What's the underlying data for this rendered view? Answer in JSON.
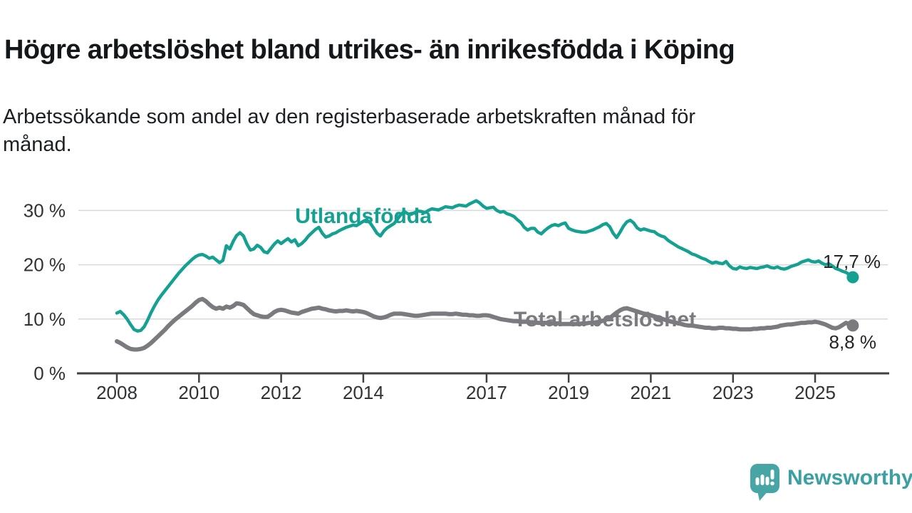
{
  "title": "Högre arbetslöshet bland utrikes- än inrikesfödda i Köping",
  "subtitle": "Arbetssökande som andel av den registerbaserade arbetskraften månad för månad.",
  "branding": {
    "name": "Newsworthy",
    "color": "#3aa0a2"
  },
  "chart_data": {
    "type": "line",
    "title": "Högre arbetslöshet bland utrikes- än inrikesfödda i Köping",
    "subtitle": "Arbetssökande som andel av den registerbaserade arbetskraften månad för månad.",
    "x_start": 2008.0,
    "x_step_months": 1,
    "xlabel": "",
    "ylabel": "",
    "ylim": [
      0,
      33
    ],
    "grid": "horizontal",
    "x_axis": {
      "ticks": [
        2008,
        2010,
        2012,
        2014,
        2017,
        2019,
        2021,
        2023,
        2025
      ],
      "labels": [
        "2008",
        "2010",
        "2012",
        "2014",
        "2017",
        "2019",
        "2021",
        "2023",
        "2025"
      ]
    },
    "y_axis": {
      "ticks": [
        0,
        10,
        20,
        30
      ],
      "labels": [
        "0 %",
        "10 %",
        "20 %",
        "30 %"
      ]
    },
    "series": [
      {
        "name": "Utlandsfödda",
        "color": "#14a191",
        "end_label": "17,7 %",
        "last_value": 17.7,
        "values": [
          11.1,
          11.4,
          10.8,
          10.0,
          9.0,
          8.1,
          7.8,
          7.9,
          8.6,
          9.8,
          11.2,
          12.4,
          13.5,
          14.4,
          15.2,
          16.0,
          16.8,
          17.6,
          18.4,
          19.1,
          19.8,
          20.4,
          21.0,
          21.5,
          21.8,
          21.9,
          21.6,
          21.2,
          21.4,
          20.9,
          20.4,
          20.8,
          23.5,
          22.9,
          24.3,
          25.4,
          25.9,
          25.3,
          23.8,
          22.7,
          22.9,
          23.6,
          23.2,
          22.4,
          22.2,
          23.0,
          23.8,
          24.4,
          23.9,
          24.4,
          24.8,
          24.2,
          24.6,
          23.5,
          23.9,
          24.5,
          25.3,
          25.9,
          26.5,
          26.9,
          25.8,
          25.1,
          25.3,
          25.7,
          25.9,
          26.3,
          26.6,
          26.9,
          27.1,
          27.3,
          27.2,
          27.6,
          28.0,
          28.3,
          27.7,
          26.8,
          25.8,
          25.3,
          26.2,
          26.8,
          27.2,
          27.6,
          28.4,
          29.3,
          29.8,
          29.4,
          29.3,
          29.6,
          29.9,
          29.8,
          29.6,
          30.0,
          30.3,
          30.2,
          30.1,
          30.4,
          30.7,
          30.6,
          30.5,
          30.8,
          31.0,
          30.9,
          30.8,
          31.2,
          31.5,
          31.8,
          31.4,
          30.8,
          30.4,
          30.5,
          30.6,
          30.0,
          29.7,
          29.8,
          29.4,
          29.2,
          28.9,
          28.3,
          27.8,
          26.9,
          26.4,
          26.7,
          26.7,
          26.0,
          25.7,
          26.3,
          26.8,
          27.2,
          27.4,
          27.2,
          27.5,
          27.7,
          26.7,
          26.4,
          26.2,
          26.1,
          26.0,
          26.0,
          26.2,
          26.4,
          26.7,
          27.0,
          27.4,
          27.6,
          27.0,
          25.8,
          25.0,
          26.0,
          27.1,
          27.9,
          28.2,
          27.7,
          26.8,
          26.4,
          26.6,
          26.4,
          26.2,
          26.1,
          25.6,
          25.3,
          25.1,
          24.5,
          24.1,
          23.7,
          23.3,
          23.0,
          22.7,
          22.4,
          22.0,
          21.8,
          21.5,
          21.2,
          21.0,
          20.6,
          20.3,
          20.5,
          20.3,
          20.2,
          20.6,
          19.8,
          19.3,
          19.2,
          19.6,
          19.4,
          19.3,
          19.5,
          19.4,
          19.3,
          19.5,
          19.6,
          19.8,
          19.5,
          19.4,
          19.6,
          19.3,
          19.2,
          19.4,
          19.7,
          19.9,
          20.1,
          20.5,
          20.7,
          20.9,
          20.6,
          20.5,
          20.7,
          20.3,
          20.0,
          20.2,
          19.8,
          19.3,
          19.1,
          18.8,
          18.6,
          18.2,
          17.7
        ]
      },
      {
        "name": "Total arbetslöshet",
        "color": "#7b7a7f",
        "end_label": "8,8 %",
        "last_value": 8.8,
        "values": [
          5.9,
          5.6,
          5.2,
          4.8,
          4.5,
          4.4,
          4.4,
          4.5,
          4.7,
          5.1,
          5.6,
          6.2,
          6.8,
          7.4,
          8.0,
          8.7,
          9.3,
          9.9,
          10.4,
          10.9,
          11.4,
          11.9,
          12.4,
          13.0,
          13.5,
          13.7,
          13.3,
          12.7,
          12.2,
          11.9,
          12.1,
          11.9,
          12.3,
          12.1,
          12.4,
          12.9,
          12.8,
          12.6,
          12.0,
          11.4,
          10.9,
          10.7,
          10.5,
          10.4,
          10.4,
          10.8,
          11.3,
          11.6,
          11.7,
          11.6,
          11.4,
          11.2,
          11.1,
          11.0,
          11.3,
          11.5,
          11.7,
          11.9,
          12.0,
          12.1,
          11.9,
          11.8,
          11.6,
          11.5,
          11.4,
          11.5,
          11.5,
          11.6,
          11.5,
          11.4,
          11.5,
          11.4,
          11.3,
          11.1,
          10.8,
          10.5,
          10.3,
          10.2,
          10.3,
          10.5,
          10.8,
          11.0,
          11.0,
          11.0,
          10.9,
          10.8,
          10.7,
          10.6,
          10.6,
          10.7,
          10.8,
          10.9,
          11.0,
          11.0,
          11.0,
          11.0,
          11.0,
          10.9,
          10.9,
          11.0,
          10.9,
          10.8,
          10.8,
          10.7,
          10.7,
          10.6,
          10.6,
          10.7,
          10.7,
          10.6,
          10.4,
          10.2,
          10.0,
          9.9,
          9.8,
          9.7,
          9.6,
          9.6,
          9.5,
          9.5,
          9.5,
          9.4,
          9.4,
          9.3,
          9.3,
          9.3,
          9.3,
          9.2,
          9.2,
          9.2,
          9.1,
          9.1,
          9.1,
          9.1,
          9.1,
          9.1,
          9.2,
          9.2,
          9.3,
          9.3,
          9.4,
          9.5,
          9.7,
          9.9,
          10.2,
          10.7,
          11.2,
          11.6,
          11.9,
          12.0,
          11.8,
          11.6,
          11.4,
          11.2,
          11.0,
          10.9,
          10.7,
          10.5,
          10.3,
          10.1,
          9.9,
          9.7,
          9.5,
          9.4,
          9.2,
          9.1,
          8.9,
          8.8,
          8.8,
          8.7,
          8.6,
          8.5,
          8.4,
          8.4,
          8.3,
          8.3,
          8.4,
          8.4,
          8.3,
          8.3,
          8.2,
          8.2,
          8.1,
          8.1,
          8.1,
          8.1,
          8.2,
          8.2,
          8.3,
          8.3,
          8.4,
          8.4,
          8.5,
          8.6,
          8.8,
          8.9,
          9.0,
          9.0,
          9.1,
          9.2,
          9.3,
          9.3,
          9.4,
          9.4,
          9.5,
          9.4,
          9.2,
          9.0,
          8.7,
          8.4,
          8.3,
          8.5,
          8.9,
          9.3,
          9.1,
          8.8
        ]
      }
    ]
  }
}
